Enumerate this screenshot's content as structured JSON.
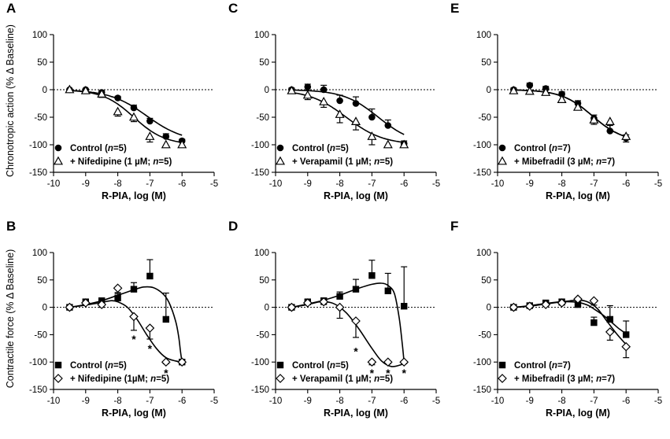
{
  "figure": {
    "ylabel_top": "Chronotropic action (% Δ Baseline)",
    "ylabel_bottom": "Contractile force (% Δ Baseline)"
  },
  "chart_data": [
    {
      "panel": "A",
      "type": "scatter",
      "row": 0,
      "col": 0,
      "xlabel": "R-PIA, log (M)",
      "xlim": [
        -10,
        -5
      ],
      "ylim": [
        -150,
        100
      ],
      "xticks": [
        -10,
        -9,
        -8,
        -7,
        -6,
        -5
      ],
      "yticks": [
        -150,
        -100,
        -50,
        0,
        50,
        100
      ],
      "baseline": 0,
      "series": [
        {
          "name": "Control",
          "marker": "circle",
          "legend_label": "Control (",
          "legend_n": "n",
          "legend_tail": "=5)",
          "x": [
            -9.5,
            -9,
            -8.5,
            -8,
            -7.5,
            -7,
            -6.5,
            -6
          ],
          "y": [
            0,
            0,
            -5,
            -15,
            -33,
            -57,
            -85,
            -93
          ],
          "err": [
            0,
            0,
            3,
            3,
            5,
            5,
            5,
            3
          ],
          "curve": {
            "bottom": -95,
            "ec50": -7.1,
            "hill": 0.75
          }
        },
        {
          "name": "+ Nifedipine",
          "marker": "triangle",
          "legend_label": "+ Nifedipine (1 µM; ",
          "legend_n": "n",
          "legend_tail": "=5)",
          "x": [
            -9.5,
            -9,
            -8.5,
            -8,
            -7.5,
            -7,
            -6.5,
            -6
          ],
          "y": [
            0,
            -2,
            -8,
            -40,
            -50,
            -85,
            -100,
            -100
          ],
          "err": [
            3,
            3,
            6,
            8,
            8,
            10,
            5,
            3
          ],
          "curve": {
            "bottom": -100,
            "ec50": -7.5,
            "hill": 0.9
          }
        }
      ],
      "annotations": []
    },
    {
      "panel": "C",
      "type": "scatter",
      "row": 0,
      "col": 1,
      "xlabel": "R-PIA, log (M)",
      "xlim": [
        -10,
        -5
      ],
      "ylim": [
        -150,
        100
      ],
      "xticks": [
        -10,
        -9,
        -8,
        -7,
        -6,
        -5
      ],
      "yticks": [
        -150,
        -100,
        -50,
        0,
        50,
        100
      ],
      "baseline": 0,
      "series": [
        {
          "name": "Control",
          "marker": "circle",
          "legend_label": "Control (",
          "legend_n": "n",
          "legend_tail": "=5)",
          "x": [
            -9.5,
            -9,
            -8.5,
            -8,
            -7.5,
            -7,
            -6.5,
            -6
          ],
          "y": [
            0,
            5,
            0,
            -20,
            -25,
            -50,
            -65,
            -98
          ],
          "err": [
            3,
            5,
            8,
            10,
            12,
            15,
            10,
            5
          ],
          "curve": {
            "bottom": -100,
            "ec50": -6.8,
            "hill": 0.8
          }
        },
        {
          "name": "+ Verapamil",
          "marker": "triangle",
          "legend_label": "+ Verapamil (1 µM; ",
          "legend_n": "n",
          "legend_tail": "=5)",
          "x": [
            -9.5,
            -9,
            -8.5,
            -8,
            -7.5,
            -7,
            -6.5,
            -6
          ],
          "y": [
            -2,
            -10,
            -22,
            -45,
            -58,
            -85,
            -100,
            -100
          ],
          "err": [
            3,
            8,
            10,
            15,
            15,
            15,
            5,
            3
          ],
          "curve": {
            "bottom": -100,
            "ec50": -7.8,
            "hill": 0.75
          }
        }
      ],
      "annotations": []
    },
    {
      "panel": "E",
      "type": "scatter",
      "row": 0,
      "col": 2,
      "xlabel": "R-PIA, log (M)",
      "xlim": [
        -10,
        -5
      ],
      "ylim": [
        -150,
        100
      ],
      "xticks": [
        -10,
        -9,
        -8,
        -7,
        -6,
        -5
      ],
      "yticks": [
        -150,
        -100,
        -50,
        0,
        50,
        100
      ],
      "baseline": 0,
      "series": [
        {
          "name": "Control",
          "marker": "circle",
          "legend_label": "Control (",
          "legend_n": "n",
          "legend_tail": "=7)",
          "x": [
            -9.5,
            -9,
            -8.5,
            -8,
            -7.5,
            -7,
            -6.5,
            -6
          ],
          "y": [
            0,
            8,
            2,
            -8,
            -25,
            -52,
            -75,
            -88
          ],
          "err": [
            3,
            4,
            4,
            4,
            5,
            6,
            10,
            6
          ],
          "curve": {
            "bottom": -95,
            "ec50": -7.05,
            "hill": 0.9
          }
        },
        {
          "name": "+ Mibefradil",
          "marker": "triangle",
          "legend_label": "+ Mibefradil (3 µM; ",
          "legend_n": "n",
          "legend_tail": "=7)",
          "x": [
            -9.5,
            -9,
            -8.5,
            -8,
            -7.5,
            -7,
            -6.5,
            -6
          ],
          "y": [
            -2,
            -3,
            -5,
            -18,
            -32,
            -55,
            -58,
            -85
          ],
          "err": [
            3,
            4,
            4,
            5,
            5,
            8,
            18,
            10
          ],
          "curve": {
            "bottom": -95,
            "ec50": -7.05,
            "hill": 0.9
          }
        }
      ],
      "annotations": []
    },
    {
      "panel": "B",
      "type": "scatter",
      "row": 1,
      "col": 0,
      "xlabel": "R-PIA, log (M)",
      "xlim": [
        -10,
        -5
      ],
      "ylim": [
        -150,
        100
      ],
      "xticks": [
        -10,
        -9,
        -8,
        -7,
        -6,
        -5
      ],
      "yticks": [
        -150,
        -100,
        -50,
        0,
        50,
        100
      ],
      "baseline": 0,
      "series": [
        {
          "name": "Control",
          "marker": "square",
          "legend_label": "Control (",
          "legend_n": "n",
          "legend_tail": "=5)",
          "x": [
            -9.5,
            -9,
            -8.5,
            -8,
            -7.5,
            -7,
            -6.5,
            -6
          ],
          "y": [
            0,
            10,
            12,
            17,
            33,
            57,
            -22,
            -100
          ],
          "err": [
            3,
            5,
            5,
            8,
            12,
            30,
            48,
            5
          ],
          "curve": {
            "path": [
              [
                -9.5,
                0
              ],
              [
                -9,
                5
              ],
              [
                -8.5,
                12
              ],
              [
                -8,
                22
              ],
              [
                -7.5,
                32
              ],
              [
                -7.2,
                37
              ],
              [
                -6.9,
                36
              ],
              [
                -6.6,
                25
              ],
              [
                -6.4,
                8
              ],
              [
                -6.2,
                -25
              ],
              [
                -6.1,
                -55
              ],
              [
                -6.05,
                -80
              ],
              [
                -6,
                -100
              ]
            ]
          }
        },
        {
          "name": "+ Nifedipine",
          "marker": "diamond",
          "legend_label": "+ Nifedipine (1µM; ",
          "legend_n": "n",
          "legend_tail": "=5)",
          "x": [
            -9.5,
            -9,
            -8.5,
            -8,
            -7.5,
            -7,
            -6.5,
            -6
          ],
          "y": [
            0,
            8,
            5,
            35,
            -17,
            -38,
            -100,
            -100
          ],
          "err": [
            3,
            3,
            5,
            8,
            25,
            20,
            3,
            3
          ],
          "curve": {
            "path": [
              [
                -9.5,
                0
              ],
              [
                -9,
                4
              ],
              [
                -8.5,
                9
              ],
              [
                -8.2,
                12
              ],
              [
                -8,
                10
              ],
              [
                -7.7,
                0
              ],
              [
                -7.4,
                -22
              ],
              [
                -7.1,
                -50
              ],
              [
                -6.8,
                -75
              ],
              [
                -6.5,
                -92
              ],
              [
                -6.2,
                -98
              ],
              [
                -6,
                -100
              ]
            ]
          }
        }
      ],
      "annotations": [
        {
          "x": -7.5,
          "y": -58,
          "text": "*"
        },
        {
          "x": -7,
          "y": -75,
          "text": "*"
        },
        {
          "x": -6.5,
          "y": -120,
          "text": "*"
        }
      ]
    },
    {
      "panel": "D",
      "type": "scatter",
      "row": 1,
      "col": 1,
      "xlabel": "R-PIA, log (M)",
      "xlim": [
        -10,
        -5
      ],
      "ylim": [
        -150,
        100
      ],
      "xticks": [
        -10,
        -9,
        -8,
        -7,
        -6,
        -5
      ],
      "yticks": [
        -150,
        -100,
        -50,
        0,
        50,
        100
      ],
      "baseline": 0,
      "series": [
        {
          "name": "Control",
          "marker": "square",
          "legend_label": "Control (",
          "legend_n": "n",
          "legend_tail": "=5)",
          "x": [
            -9.5,
            -9,
            -8.5,
            -8,
            -7.5,
            -7,
            -6.5,
            -6
          ],
          "y": [
            0,
            10,
            12,
            20,
            33,
            58,
            30,
            2
          ],
          "err": [
            3,
            4,
            5,
            8,
            18,
            28,
            32,
            72
          ],
          "curve": {
            "path": [
              [
                -9.5,
                0
              ],
              [
                -9,
                6
              ],
              [
                -8.5,
                13
              ],
              [
                -8,
                22
              ],
              [
                -7.5,
                33
              ],
              [
                -7,
                42
              ],
              [
                -6.7,
                44
              ],
              [
                -6.5,
                40
              ],
              [
                -6.3,
                25
              ],
              [
                -6.15,
                -20
              ],
              [
                -6.05,
                -70
              ],
              [
                -6,
                -100
              ]
            ]
          }
        },
        {
          "name": "+ Verapamil",
          "marker": "diamond",
          "legend_label": "+ Verapamil (1 µM; ",
          "legend_n": "n",
          "legend_tail": "=5)",
          "x": [
            -9.5,
            -9,
            -8.5,
            -8,
            -7.5,
            -7,
            -6.5,
            -6
          ],
          "y": [
            0,
            8,
            10,
            0,
            -25,
            -100,
            -100,
            -100
          ],
          "err": [
            3,
            3,
            5,
            20,
            30,
            5,
            3,
            3
          ],
          "curve": {
            "path": [
              [
                -9.5,
                0
              ],
              [
                -9,
                5
              ],
              [
                -8.6,
                10
              ],
              [
                -8.2,
                7
              ],
              [
                -7.8,
                -10
              ],
              [
                -7.4,
                -40
              ],
              [
                -7,
                -75
              ],
              [
                -6.7,
                -98
              ],
              [
                -6.4,
                -108
              ],
              [
                -6.1,
                -105
              ],
              [
                -6,
                -100
              ]
            ]
          }
        }
      ],
      "annotations": [
        {
          "x": -7.5,
          "y": -80,
          "text": "*"
        },
        {
          "x": -7,
          "y": -120,
          "text": "*"
        },
        {
          "x": -6.5,
          "y": -120,
          "text": "*"
        },
        {
          "x": -6,
          "y": -120,
          "text": "*"
        }
      ]
    },
    {
      "panel": "F",
      "type": "scatter",
      "row": 1,
      "col": 2,
      "xlabel": "R-PIA, log (M)",
      "xlim": [
        -10,
        -5
      ],
      "ylim": [
        -150,
        100
      ],
      "xticks": [
        -10,
        -9,
        -8,
        -7,
        -6,
        -5
      ],
      "yticks": [
        -150,
        -100,
        -50,
        0,
        50,
        100
      ],
      "baseline": 0,
      "series": [
        {
          "name": "Control",
          "marker": "square",
          "legend_label": "Control (",
          "legend_n": "n",
          "legend_tail": "=7)",
          "x": [
            -9.5,
            -9,
            -8.5,
            -8,
            -7.5,
            -7,
            -6.5,
            -6
          ],
          "y": [
            0,
            3,
            8,
            10,
            5,
            -28,
            -22,
            -50
          ],
          "err": [
            3,
            3,
            4,
            5,
            8,
            10,
            25,
            25
          ],
          "curve": {
            "path": [
              [
                -9.5,
                0
              ],
              [
                -9,
                3
              ],
              [
                -8.5,
                7
              ],
              [
                -8,
                10
              ],
              [
                -7.5,
                9
              ],
              [
                -7.2,
                4
              ],
              [
                -7,
                -3
              ],
              [
                -6.7,
                -15
              ],
              [
                -6.4,
                -30
              ],
              [
                -6.2,
                -40
              ],
              [
                -6,
                -48
              ]
            ]
          }
        },
        {
          "name": "+ Mibefradil",
          "marker": "diamond",
          "legend_label": "+ Mibefradil (3 µM; ",
          "legend_n": "n",
          "legend_tail": "=7)",
          "x": [
            -9.5,
            -9,
            -8.5,
            -8,
            -7.5,
            -7,
            -6.5,
            -6
          ],
          "y": [
            0,
            2,
            5,
            8,
            15,
            12,
            -45,
            -72
          ],
          "err": [
            3,
            3,
            3,
            4,
            5,
            8,
            15,
            20
          ],
          "curve": {
            "path": [
              [
                -9.5,
                0
              ],
              [
                -9,
                2
              ],
              [
                -8.5,
                6
              ],
              [
                -8,
                10
              ],
              [
                -7.5,
                13
              ],
              [
                -7.2,
                10
              ],
              [
                -6.9,
                -2
              ],
              [
                -6.6,
                -25
              ],
              [
                -6.3,
                -48
              ],
              [
                -6,
                -68
              ]
            ]
          }
        }
      ],
      "annotations": []
    }
  ]
}
